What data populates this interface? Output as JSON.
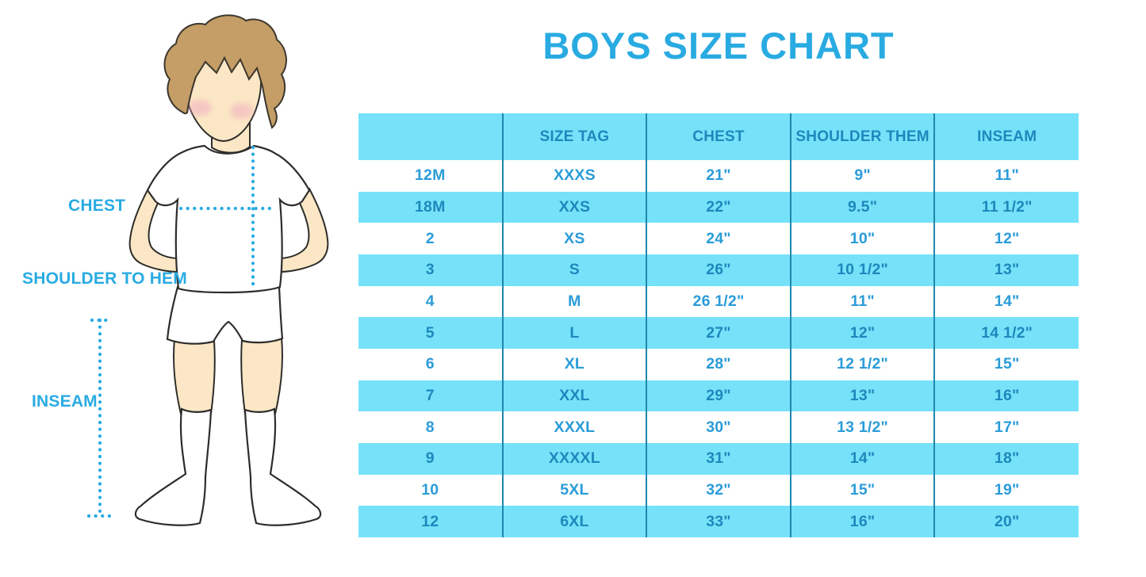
{
  "title": "BOYS SIZE CHART",
  "figure": {
    "chest_label": "CHEST",
    "shoulder_to_hem_label": "SHOULDER TO HEM",
    "inseam_label": "INSEAM"
  },
  "chart_data": {
    "type": "table",
    "title": "BOYS SIZE CHART",
    "columns": [
      "",
      "SIZE TAG",
      "CHEST",
      "SHOULDER THEM",
      "INSEAM"
    ],
    "rows": [
      [
        "12M",
        "XXXS",
        "21\"",
        "9\"",
        "11\""
      ],
      [
        "18M",
        "XXS",
        "22\"",
        "9.5\"",
        "11 1/2\""
      ],
      [
        "2",
        "XS",
        "24\"",
        "10\"",
        "12\""
      ],
      [
        "3",
        "S",
        "26\"",
        "10 1/2\"",
        "13\""
      ],
      [
        "4",
        "M",
        "26 1/2\"",
        "11\"",
        "14\""
      ],
      [
        "5",
        "L",
        "27\"",
        "12\"",
        "14 1/2\""
      ],
      [
        "6",
        "XL",
        "28\"",
        "12 1/2\"",
        "15\""
      ],
      [
        "7",
        "XXL",
        "29\"",
        "13\"",
        "16\""
      ],
      [
        "8",
        "XXXL",
        "30\"",
        "13 1/2\"",
        "17\""
      ],
      [
        "9",
        "XXXXL",
        "31\"",
        "14\"",
        "18\""
      ],
      [
        "10",
        "5XL",
        "32\"",
        "15\"",
        "19\""
      ],
      [
        "12",
        "6XL",
        "33\"",
        "16\"",
        "20\""
      ]
    ]
  },
  "colors": {
    "accent_blue": "#29ABE2",
    "band_blue": "#76E2F9",
    "grid_blue": "#1F87AD",
    "text_on_white": "#2B9CD8",
    "text_on_band": "#1E88BD",
    "skin": "#FBE7C5",
    "hair": "#C49E66",
    "blush": "#F2ADC0",
    "outline": "#2E2D2B"
  }
}
